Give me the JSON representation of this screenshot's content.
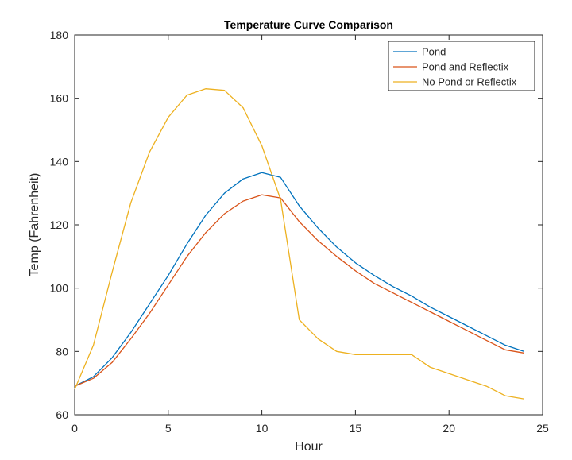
{
  "chart_data": {
    "type": "line",
    "title": "Temperature Curve Comparison",
    "xlabel": "Hour",
    "ylabel": "Temp (Fahrenheit)",
    "xlim": [
      0,
      25
    ],
    "ylim": [
      60,
      180
    ],
    "xticks": [
      0,
      5,
      10,
      15,
      20,
      25
    ],
    "yticks": [
      60,
      80,
      100,
      120,
      140,
      160,
      180
    ],
    "grid": false,
    "legend_position": "top-right",
    "x": [
      0,
      1,
      2,
      3,
      4,
      5,
      6,
      7,
      8,
      9,
      10,
      11,
      12,
      13,
      14,
      15,
      16,
      17,
      18,
      19,
      20,
      21,
      22,
      23,
      24
    ],
    "series": [
      {
        "name": "Pond",
        "color": "#0072BD",
        "values": [
          69,
          72,
          78,
          86,
          95,
          104,
          114,
          123,
          130,
          134.5,
          136.5,
          135,
          126,
          119,
          113,
          108,
          104,
          100.5,
          97.5,
          94,
          91,
          88,
          85,
          82,
          80
        ]
      },
      {
        "name": "Pond and Reflectix",
        "color": "#D95319",
        "values": [
          69,
          71.5,
          76.5,
          84,
          92,
          101,
          110,
          117.5,
          123.5,
          127.5,
          129.5,
          128.5,
          121,
          115,
          110,
          105.5,
          101.5,
          98.5,
          95.5,
          92.5,
          89.5,
          86.5,
          83.5,
          80.5,
          79.5
        ]
      },
      {
        "name": "No Pond or Reflectix",
        "color": "#EDB120",
        "values": [
          68,
          82,
          105,
          127,
          143,
          154,
          161,
          163,
          162.5,
          157,
          145,
          128,
          90,
          84,
          80,
          79,
          79,
          79,
          79,
          75,
          73,
          71,
          69,
          66,
          65
        ]
      }
    ]
  }
}
